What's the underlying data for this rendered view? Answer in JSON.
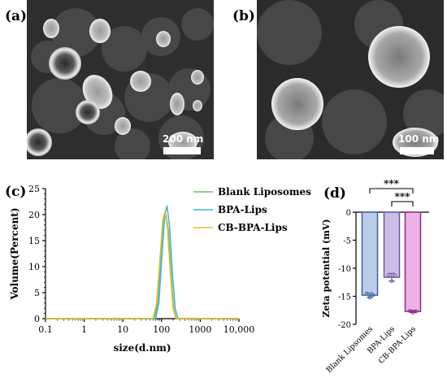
{
  "figure": {
    "panels": {
      "a": {
        "label": "(a)",
        "scale_bar": "200 nm"
      },
      "b": {
        "label": "(b)",
        "scale_bar": "100 nm"
      },
      "c": {
        "label": "(c)"
      },
      "d": {
        "label": "(d)"
      }
    }
  },
  "colors": {
    "blank": "#6cc06c",
    "bpa": "#3fb5dd",
    "cb": "#e8b825",
    "bar_blank_fill": "#b8cde8",
    "bar_blank_stroke": "#3d5fa3",
    "bar_bpa_fill": "#cbbde6",
    "bar_bpa_stroke": "#6a5a9f",
    "bar_cb_fill": "#eeb2e6",
    "bar_cb_stroke": "#8a2a8a"
  },
  "chart_data": [
    {
      "type": "line",
      "panel": "c",
      "xlabel": "size(d.nm)",
      "ylabel": "Volume(Percent)",
      "x_scale": "log",
      "xlim": [
        0.1,
        10000
      ],
      "ylim": [
        0,
        25
      ],
      "x_ticks": [
        "0.1",
        "1",
        "10",
        "100",
        "1000",
        "10,000"
      ],
      "y_ticks": [
        "0",
        "5",
        "10",
        "15",
        "20",
        "25"
      ],
      "legend_position": "top-right",
      "series": [
        {
          "name": "Blank Liposomes",
          "color_key": "blank",
          "points": [
            [
              0.1,
              0
            ],
            [
              40,
              0
            ],
            [
              65,
              0
            ],
            [
              80,
              3
            ],
            [
              95,
              11
            ],
            [
              115,
              18.8
            ],
            [
              130,
              19.9
            ],
            [
              150,
              17
            ],
            [
              175,
              9
            ],
            [
              205,
              2
            ],
            [
              240,
              0
            ],
            [
              10000,
              0
            ]
          ]
        },
        {
          "name": "BPA-Lips",
          "color_key": "bpa",
          "points": [
            [
              0.1,
              0
            ],
            [
              40,
              0
            ],
            [
              70,
              0
            ],
            [
              85,
              3
            ],
            [
              100,
              11
            ],
            [
              120,
              19.5
            ],
            [
              138,
              21.7
            ],
            [
              160,
              18
            ],
            [
              190,
              9
            ],
            [
              225,
              2
            ],
            [
              265,
              0
            ],
            [
              10000,
              0
            ]
          ]
        },
        {
          "name": "CB-BPA-Lips",
          "color_key": "cb",
          "points": [
            [
              0.1,
              0
            ],
            [
              40,
              0
            ],
            [
              60,
              0
            ],
            [
              75,
              3
            ],
            [
              90,
              11
            ],
            [
              108,
              19
            ],
            [
              124,
              20.6
            ],
            [
              142,
              17.5
            ],
            [
              168,
              9
            ],
            [
              198,
              2
            ],
            [
              235,
              0
            ],
            [
              10000,
              0
            ]
          ]
        }
      ]
    },
    {
      "type": "bar",
      "panel": "d",
      "ylabel": "Zeta potential (mV)",
      "ylim": [
        -20,
        0
      ],
      "y_ticks": [
        "0",
        "-5",
        "-10",
        "-15",
        "-20"
      ],
      "categories": [
        "Blank Lipsomes",
        "BPA-Lips",
        "CB-BPA-Lips"
      ],
      "values": [
        -14.8,
        -11.6,
        -17.7
      ],
      "errors": [
        0.4,
        0.7,
        0.2
      ],
      "replicates": [
        [
          -14.5,
          -15.2,
          -14.8
        ],
        [
          -11.2,
          -12.3,
          -11.3
        ],
        [
          -17.6,
          -17.9,
          -17.7
        ]
      ],
      "significance": [
        {
          "from": 0,
          "to": 2,
          "label": "***"
        },
        {
          "from": 1,
          "to": 2,
          "label": "***"
        }
      ]
    }
  ]
}
